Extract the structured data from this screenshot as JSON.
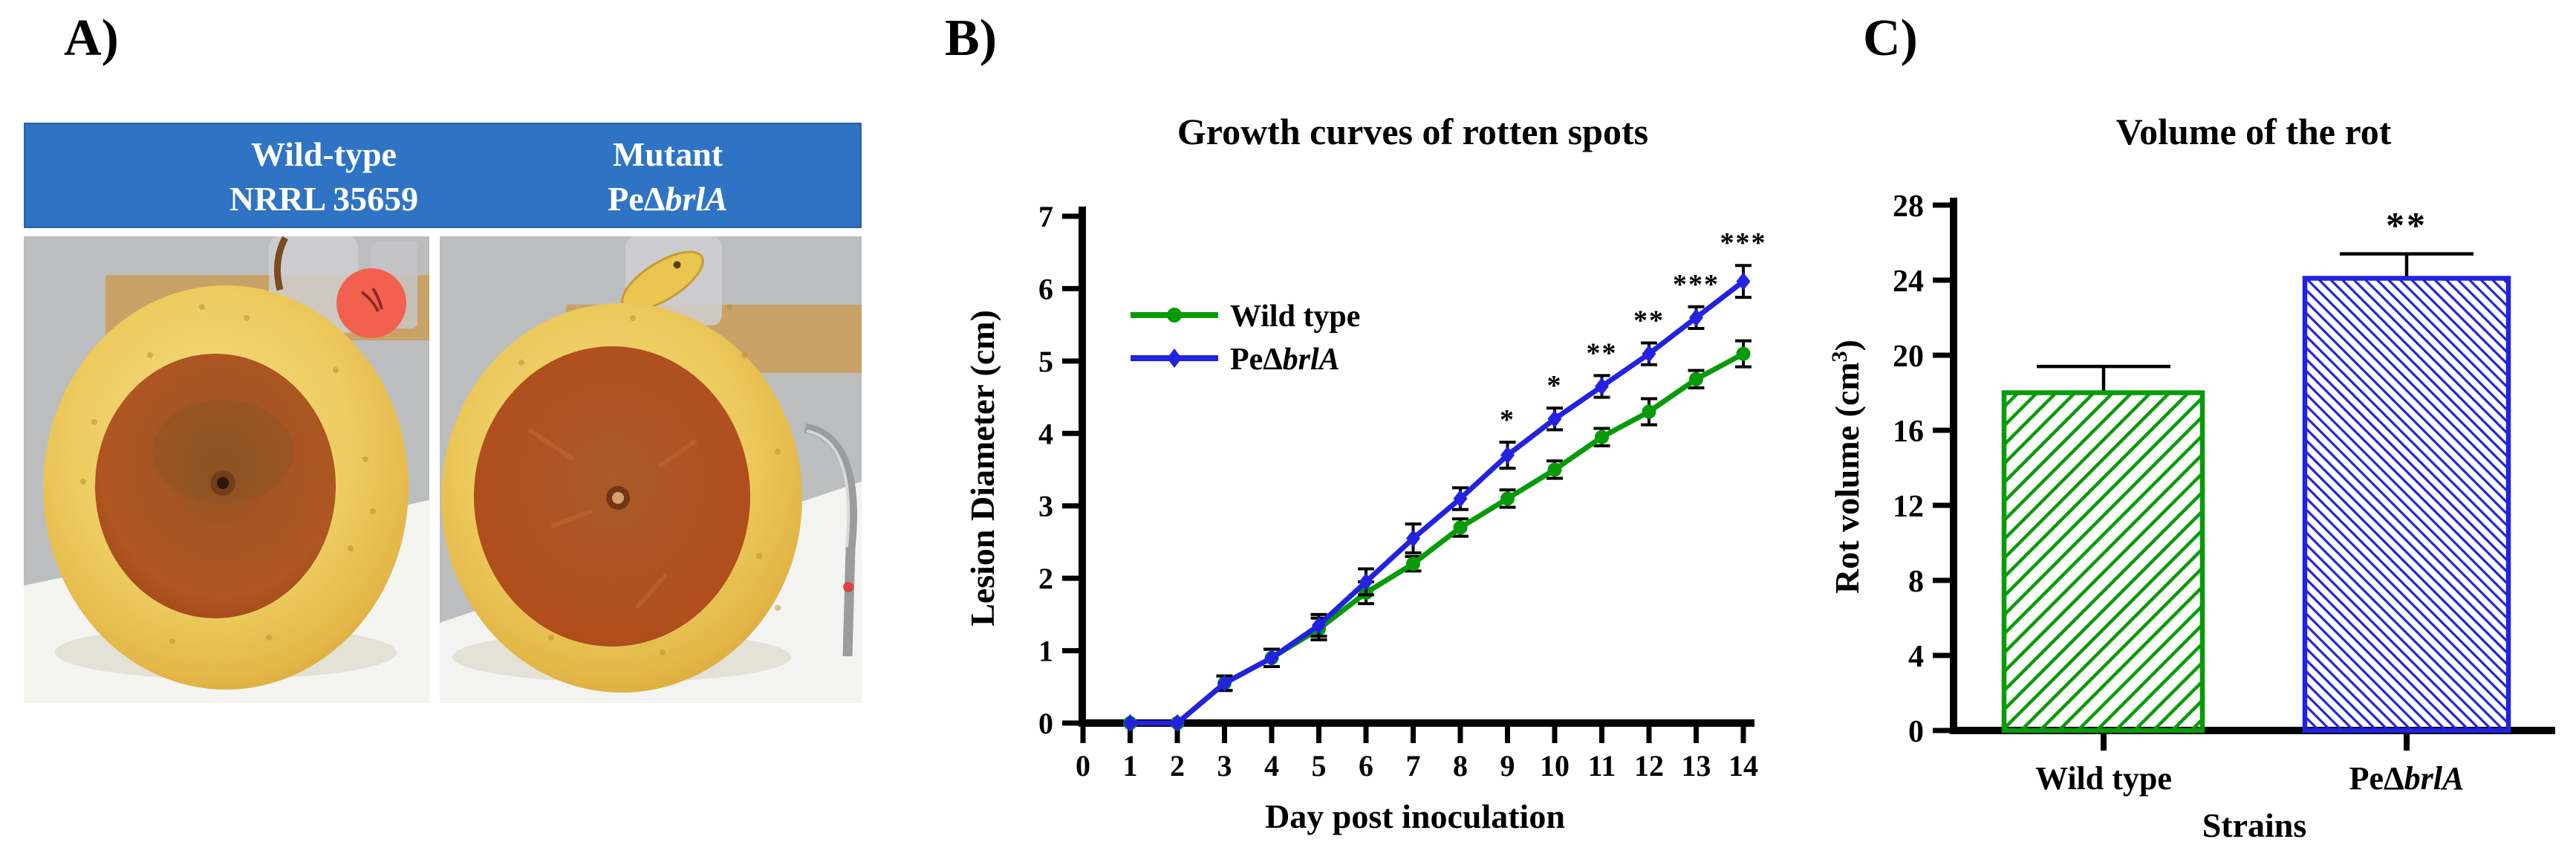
{
  "panel_a": {
    "label": "A)",
    "header": {
      "bg_color": "#2F74C4",
      "text_color": "#ffffff",
      "left": {
        "line1": "Wild-type",
        "line2": "NRRL 35659"
      },
      "right": {
        "line1": "Mutant",
        "strain_parts": {
          "pre": "Pe",
          "delta": "Δ",
          "italic": "brlA"
        }
      }
    },
    "photos": [
      {
        "name": "wild-type inoculated apple",
        "description": "yellow apple with brown rot lesion and red sticker"
      },
      {
        "name": "mutant inoculated apple",
        "description": "yellow apple with larger brown rot lesion and yellow tag"
      }
    ]
  },
  "panel_b": {
    "label": "B)"
  },
  "panel_c": {
    "label": "C)"
  },
  "colors": {
    "wild_type_green": "#089B08",
    "mutant_blue": "#2222E0",
    "axis_black": "#000000",
    "header_blue": "#2F74C4"
  },
  "chart_data": [
    {
      "id": "growth_curves",
      "type": "line",
      "title": "Growth curves of rotten spots",
      "xlabel": "Day post inoculation",
      "ylabel": "Lesion Diameter (cm)",
      "xlim": [
        0,
        14
      ],
      "ylim": [
        0,
        7
      ],
      "xticks": [
        0,
        1,
        2,
        3,
        4,
        5,
        6,
        7,
        8,
        9,
        10,
        11,
        12,
        13,
        14
      ],
      "yticks": [
        0,
        1,
        2,
        3,
        4,
        5,
        6,
        7
      ],
      "grid": false,
      "legend_position": "upper-left",
      "x": [
        1,
        2,
        3,
        4,
        5,
        6,
        7,
        8,
        9,
        10,
        11,
        12,
        13,
        14
      ],
      "series": [
        {
          "name": "Wild type",
          "color": "#089B08",
          "marker": "circle",
          "values": [
            0,
            0,
            0.55,
            0.9,
            1.3,
            1.8,
            2.2,
            2.7,
            3.1,
            3.5,
            3.95,
            4.3,
            4.75,
            5.1
          ],
          "errors": [
            0,
            0,
            0.1,
            0.12,
            0.15,
            0.15,
            0.1,
            0.12,
            0.12,
            0.12,
            0.12,
            0.18,
            0.12,
            0.18
          ]
        },
        {
          "name": "PeΔbrlA",
          "name_parts": {
            "pre": "Pe",
            "delta": "Δ",
            "italic": "brlA"
          },
          "color": "#2222E0",
          "marker": "diamond",
          "values": [
            0,
            0,
            0.55,
            0.9,
            1.35,
            1.95,
            2.55,
            3.1,
            3.7,
            4.2,
            4.65,
            5.1,
            5.6,
            6.1
          ],
          "errors": [
            0,
            0,
            0.1,
            0.12,
            0.15,
            0.18,
            0.2,
            0.15,
            0.18,
            0.15,
            0.15,
            0.15,
            0.15,
            0.22
          ],
          "significance": {
            "9": "*",
            "10": "*",
            "11": "**",
            "12": "**",
            "13": "***",
            "14": "***"
          }
        }
      ]
    },
    {
      "id": "rot_volume",
      "type": "bar",
      "title": "Volume of the rot",
      "xlabel": "Strains",
      "ylabel_parts": {
        "pre": "Rot volume (cm",
        "sup": "3",
        "post": ")"
      },
      "ylim": [
        0,
        28
      ],
      "yticks": [
        0,
        4,
        8,
        12,
        16,
        20,
        24,
        28
      ],
      "grid": false,
      "categories": [
        {
          "label": "Wild type"
        },
        {
          "parts": {
            "pre": "Pe",
            "delta": "Δ",
            "italic": "brlA"
          }
        }
      ],
      "values": [
        18,
        24.1
      ],
      "errors": [
        1.4,
        1.3
      ],
      "significance": [
        "",
        "**"
      ],
      "bar_colors": [
        "#089B08",
        "#2222E0"
      ],
      "hatch": [
        "\\",
        "/"
      ]
    }
  ]
}
